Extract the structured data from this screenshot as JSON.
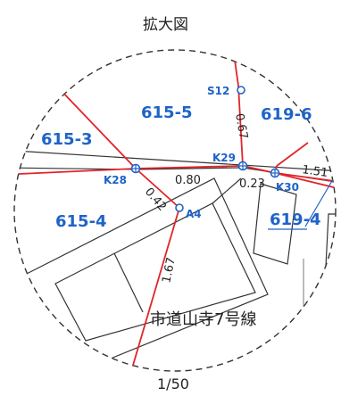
{
  "title": "拡大図",
  "scale": "1/50",
  "road_name": "市道山寺7号線",
  "parcels": {
    "p615_5": "615-5",
    "p619_6": "619-6",
    "p615_3": "615-3",
    "p615_4": "615-4",
    "p619_4": "619-4"
  },
  "points": {
    "s12": "S12",
    "k29": "K29",
    "k28": "K28",
    "k30": "K30",
    "a4": "A4"
  },
  "distances": {
    "d067": "0.67",
    "d080": "0.80",
    "d023": "0.23",
    "d042": "0.42",
    "d151": "1.51",
    "d167": "1.67"
  },
  "colors": {
    "boundary": "#e0252a",
    "label": "#1e63c8",
    "ink": "#222222"
  }
}
